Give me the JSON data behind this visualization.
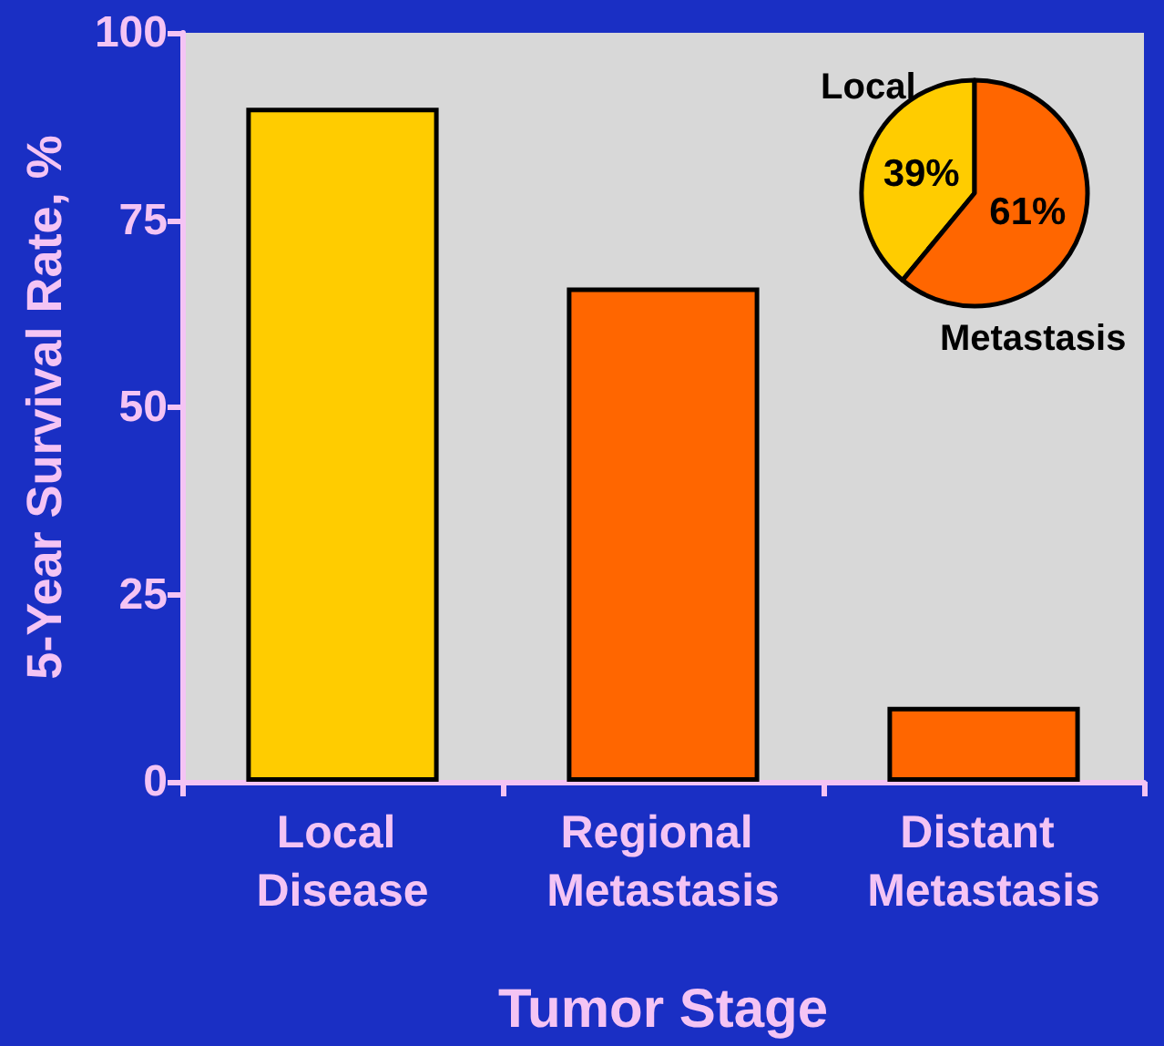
{
  "chart_data": [
    {
      "type": "bar",
      "categories": [
        "Local Disease",
        "Regional Metastasis",
        "Distant Metastasis"
      ],
      "values": [
        90,
        66,
        10
      ],
      "colors": [
        "#ffcc00",
        "#ff6600",
        "#ff6600"
      ],
      "xlabel": "Tumor Stage",
      "ylabel": "5-Year Survival Rate, %",
      "ylim": [
        0,
        100
      ],
      "yticks": [
        0,
        25,
        50,
        75,
        100
      ]
    },
    {
      "type": "pie",
      "categories": [
        "Local",
        "Metastasis"
      ],
      "values": [
        39,
        61
      ],
      "colors": [
        "#ffcc00",
        "#ff6600"
      ],
      "value_labels": [
        "39%",
        "61%"
      ]
    }
  ]
}
